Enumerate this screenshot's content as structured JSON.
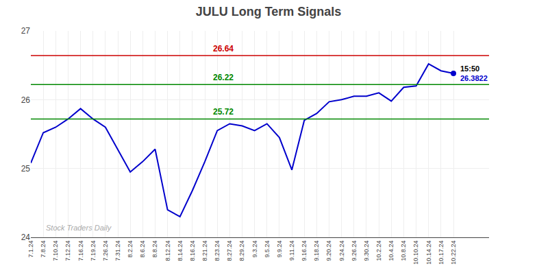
{
  "chart_data": {
    "type": "line",
    "title": "JULU Long Term Signals",
    "categories": [
      "7.1.24",
      "7.8.24",
      "7.10.24",
      "7.12.24",
      "7.16.24",
      "7.19.24",
      "7.26.24",
      "7.31.24",
      "8.2.24",
      "8.6.24",
      "8.8.24",
      "8.12.24",
      "8.14.24",
      "8.16.24",
      "8.21.24",
      "8.23.24",
      "8.27.24",
      "8.29.24",
      "9.3.24",
      "9.5.24",
      "9.9.24",
      "9.11.24",
      "9.16.24",
      "9.18.24",
      "9.20.24",
      "9.24.24",
      "9.26.24",
      "9.30.24",
      "10.2.24",
      "10.4.24",
      "10.8.24",
      "10.10.24",
      "10.14.24",
      "10.17.24",
      "10.22.24"
    ],
    "values": [
      25.08,
      25.52,
      25.6,
      25.72,
      25.87,
      25.72,
      25.6,
      25.28,
      24.95,
      25.1,
      25.28,
      24.4,
      24.3,
      24.68,
      25.1,
      25.55,
      25.65,
      25.62,
      25.55,
      25.65,
      25.45,
      24.98,
      25.7,
      25.8,
      25.97,
      26.0,
      26.05,
      26.05,
      26.1,
      25.98,
      26.18,
      26.2,
      26.52,
      26.42,
      26.3822
    ],
    "color": "#0000cc",
    "ylim": [
      24,
      27
    ],
    "yticks": [
      24,
      25,
      26,
      27
    ],
    "grid": true,
    "reference_lines": [
      {
        "value": 26.64,
        "label": "26.64",
        "color": "#cc0000"
      },
      {
        "value": 26.22,
        "label": "26.22",
        "color": "#008800"
      },
      {
        "value": 25.72,
        "label": "25.72",
        "color": "#008800"
      }
    ],
    "watermark": "Stock Traders Daily",
    "last_point_labels": [
      {
        "text": "15:50",
        "color": "#000000"
      },
      {
        "text": "26.3822",
        "color": "#0000cc"
      }
    ]
  }
}
